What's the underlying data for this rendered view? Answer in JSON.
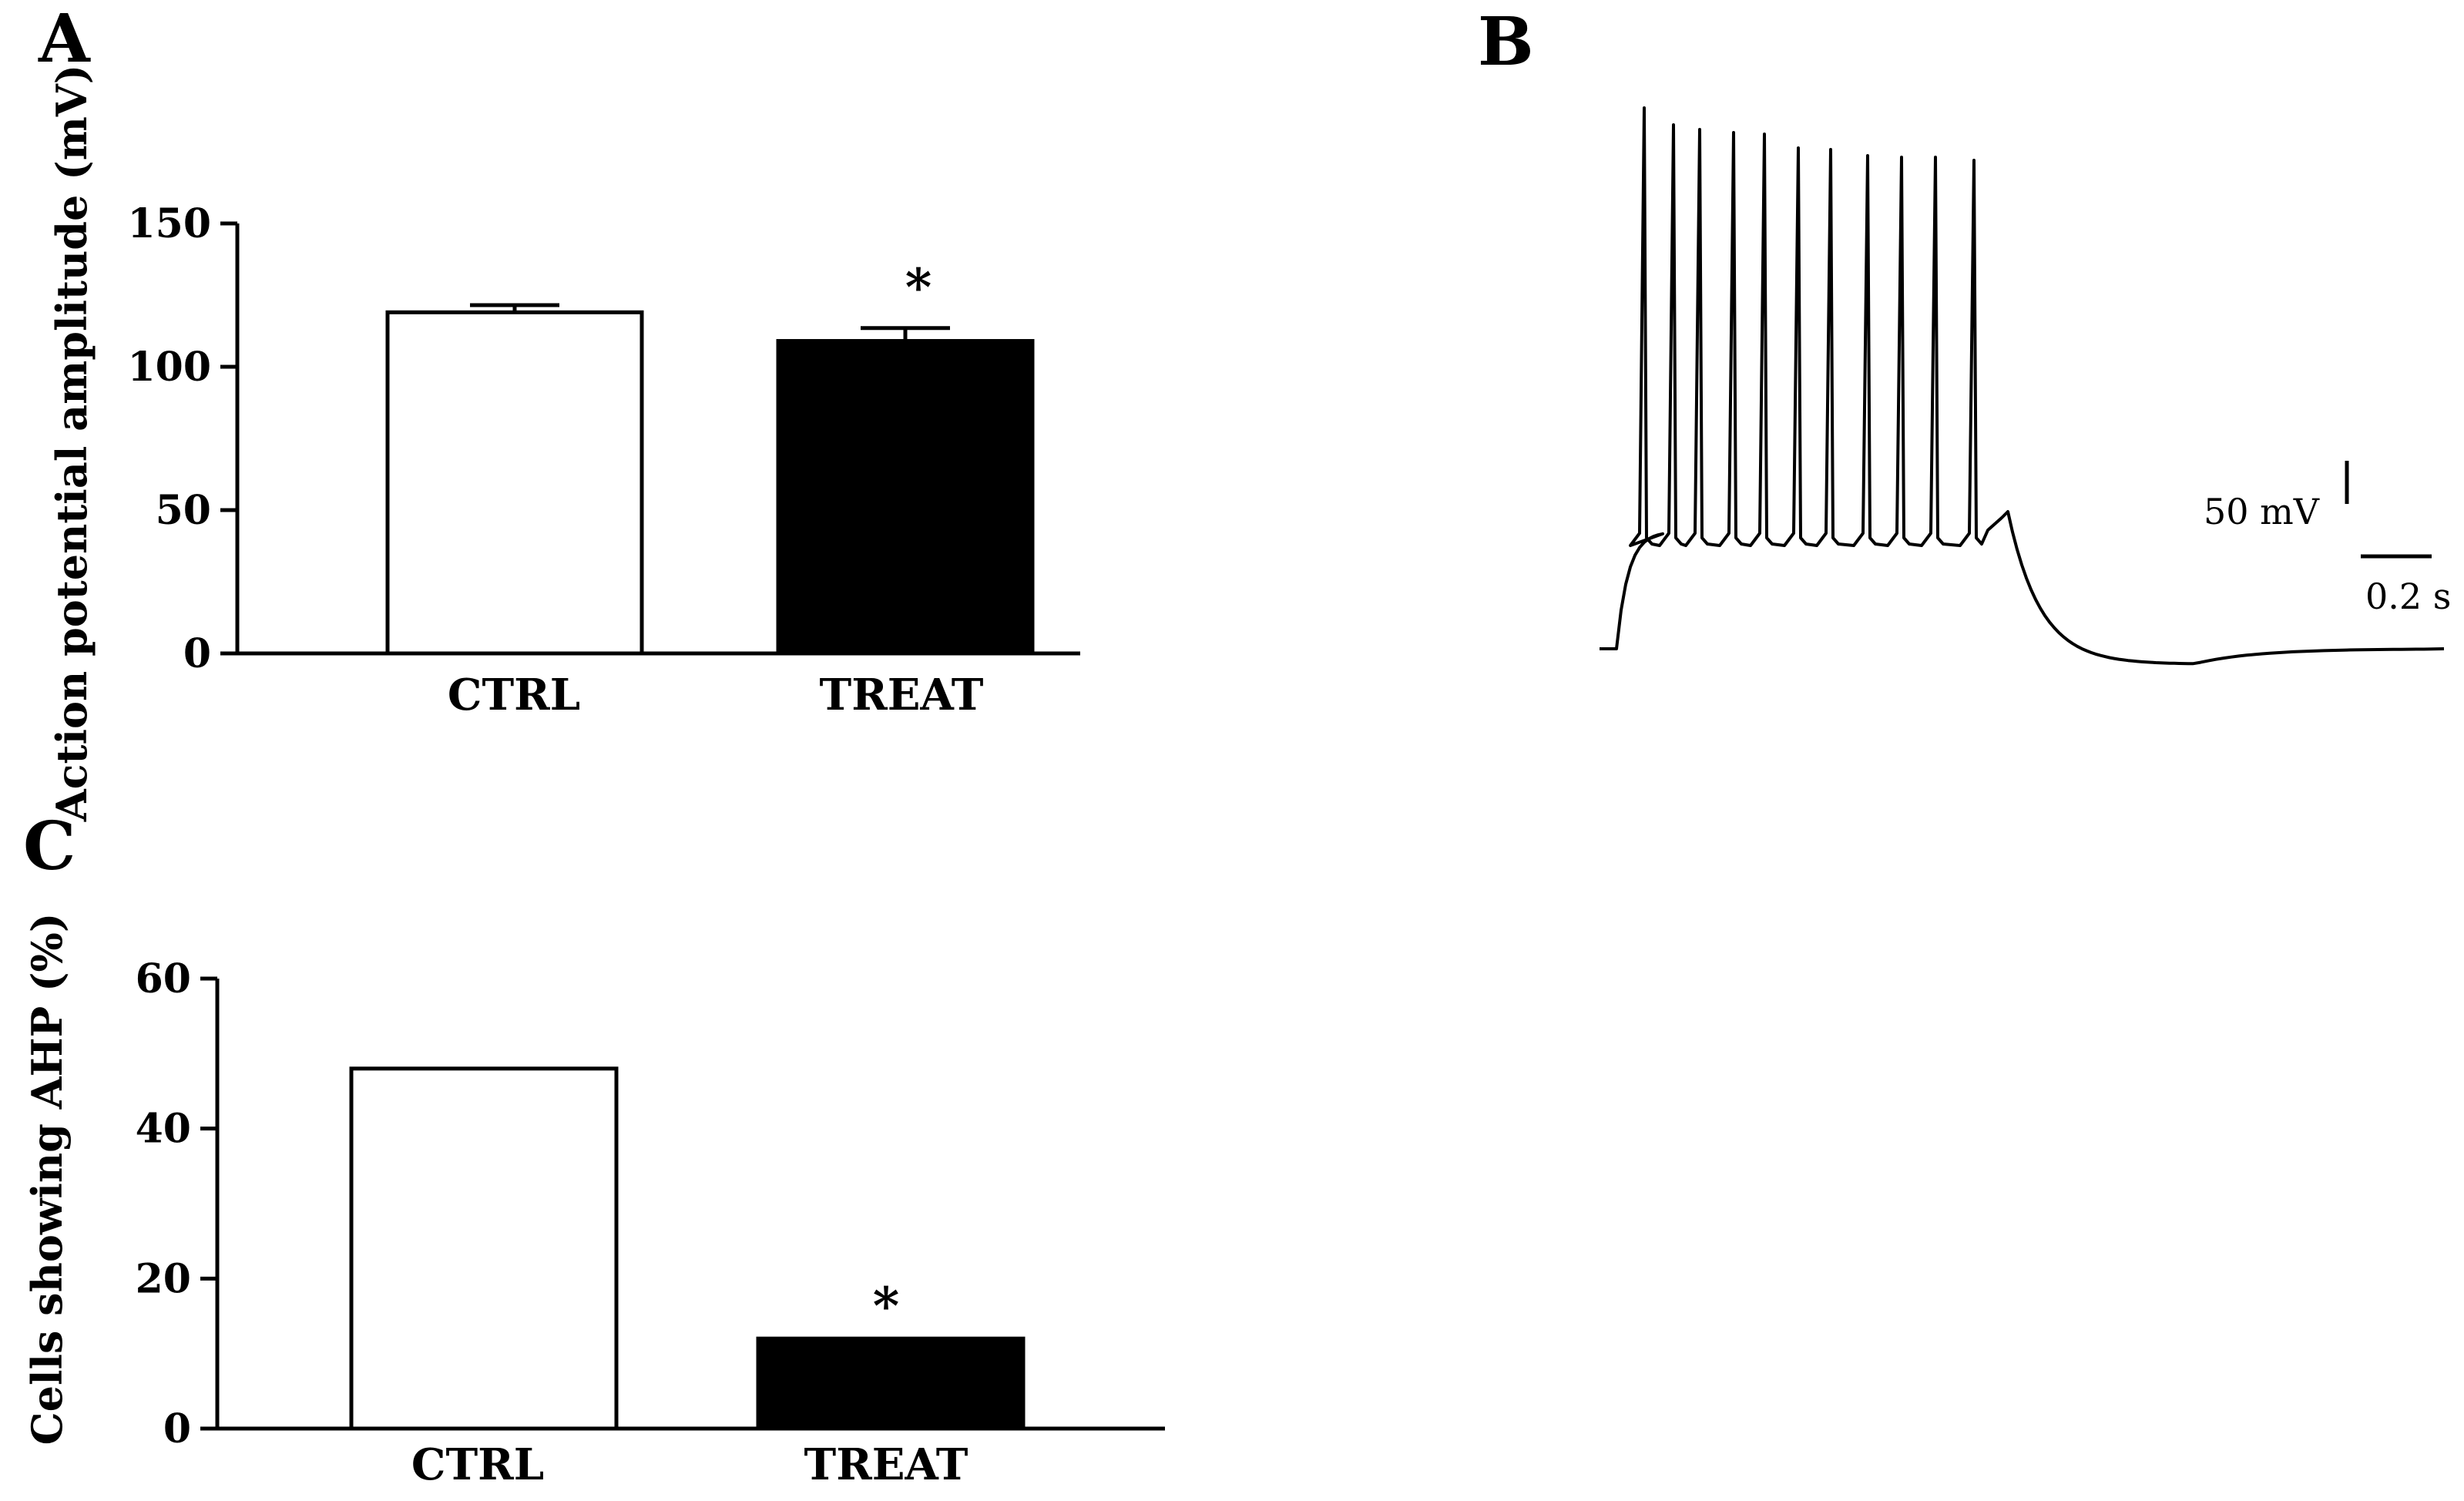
{
  "panels": {
    "a": {
      "letter": "A"
    },
    "b": {
      "letter": "B"
    },
    "c": {
      "letter": "C"
    }
  },
  "chart_data": [
    {
      "id": "A",
      "type": "bar",
      "categories": [
        "CTRL",
        "TREAT"
      ],
      "values": [
        119,
        109
      ],
      "errors": [
        2.5,
        4.5
      ],
      "significance": [
        "",
        "*"
      ],
      "bar_colors": [
        "#ffffff",
        "#000000"
      ],
      "ylabel": "Action potential amplitude (mV)",
      "ylim": [
        0,
        150
      ],
      "yticks": [
        0,
        50,
        100,
        150
      ],
      "ytick_labels": [
        "0",
        "50",
        "100",
        "150"
      ]
    },
    {
      "id": "B",
      "type": "line",
      "description_units": {
        "y": "mV",
        "x": "s"
      },
      "scale_bar": {
        "voltage_label": "50 mV",
        "time_label": "0.2 s",
        "voltage": 50,
        "time": 0.2
      },
      "spike_count": 11
    },
    {
      "id": "C",
      "type": "bar",
      "categories": [
        "CTRL",
        "TREAT"
      ],
      "values": [
        48,
        12
      ],
      "significance": [
        "",
        "*"
      ],
      "bar_colors": [
        "#ffffff",
        "#000000"
      ],
      "ylabel": "Cells showing AHP (%)",
      "ylim": [
        0,
        60
      ],
      "yticks": [
        0,
        20,
        40,
        60
      ],
      "ytick_labels": [
        "0",
        "20",
        "40",
        "60"
      ]
    }
  ]
}
